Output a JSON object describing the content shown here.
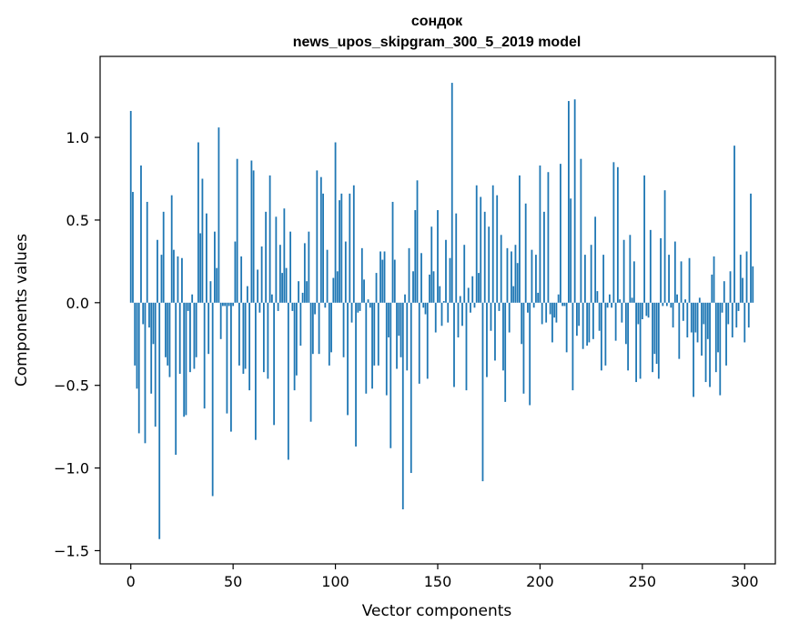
{
  "chart_data": {
    "type": "bar",
    "title_lines": [
      "сондок",
      "news_upos_skipgram_300_5_2019 model"
    ],
    "xlabel": "Vector components",
    "ylabel": "Components values",
    "xlim": [
      -15,
      315
    ],
    "ylim": [
      -1.58,
      1.49
    ],
    "xticks": [
      0,
      50,
      100,
      150,
      200,
      250,
      300
    ],
    "yticks": [
      -1.5,
      -1.0,
      -0.5,
      0.0,
      0.5,
      1.0
    ],
    "ytick_labels": [
      "−1.5",
      "−1.0",
      "−0.5",
      "0.0",
      "0.5",
      "1.0"
    ],
    "bar_color": "#1f77b4",
    "values": [
      1.16,
      0.67,
      -0.38,
      -0.52,
      -0.79,
      0.83,
      -0.13,
      -0.85,
      0.61,
      -0.15,
      -0.55,
      -0.25,
      -0.75,
      0.38,
      -1.43,
      0.29,
      0.55,
      -0.33,
      -0.38,
      -0.45,
      0.65,
      0.32,
      -0.92,
      0.28,
      -0.43,
      0.27,
      -0.69,
      -0.68,
      -0.05,
      -0.42,
      0.05,
      -0.4,
      -0.33,
      0.97,
      0.42,
      0.75,
      -0.64,
      0.54,
      -0.31,
      0.13,
      -1.17,
      0.43,
      0.21,
      1.06,
      -0.22,
      -0.02,
      -0.02,
      -0.67,
      -0.02,
      -0.78,
      -0.02,
      0.37,
      0.87,
      -0.38,
      0.28,
      -0.43,
      -0.4,
      0.1,
      -0.53,
      0.86,
      0.8,
      -0.83,
      0.2,
      -0.06,
      0.34,
      -0.42,
      0.55,
      -0.46,
      0.77,
      0.05,
      -0.74,
      0.52,
      -0.05,
      0.35,
      0.18,
      0.57,
      0.21,
      -0.95,
      0.43,
      -0.05,
      -0.53,
      -0.44,
      0.13,
      -0.26,
      0.06,
      0.36,
      0.13,
      0.43,
      -0.72,
      -0.31,
      -0.07,
      0.8,
      -0.31,
      0.76,
      0.66,
      -0.03,
      0.32,
      -0.38,
      -0.3,
      0.15,
      0.97,
      0.19,
      0.62,
      0.66,
      -0.33,
      0.37,
      -0.68,
      0.66,
      -0.12,
      0.71,
      -0.87,
      -0.06,
      -0.05,
      0.33,
      0.14,
      -0.55,
      0.02,
      -0.03,
      -0.52,
      -0.38,
      0.18,
      -0.38,
      0.31,
      0.26,
      0.31,
      -0.56,
      -0.21,
      -0.88,
      0.61,
      0.26,
      -0.4,
      -0.2,
      -0.33,
      -1.25,
      0.05,
      -0.41,
      0.33,
      -1.03,
      0.19,
      0.56,
      0.74,
      -0.49,
      0.3,
      -0.03,
      -0.07,
      -0.46,
      0.17,
      0.46,
      0.19,
      -0.18,
      0.56,
      0.1,
      -0.14,
      0.01,
      0.38,
      -0.12,
      0.27,
      1.33,
      -0.51,
      0.54,
      -0.21,
      0.04,
      -0.14,
      0.35,
      -0.53,
      0.09,
      -0.06,
      0.16,
      -0.03,
      0.71,
      0.18,
      0.64,
      -1.08,
      0.55,
      -0.45,
      0.46,
      -0.17,
      0.71,
      -0.35,
      0.65,
      -0.05,
      0.41,
      -0.41,
      -0.6,
      0.33,
      -0.18,
      0.31,
      0.1,
      0.35,
      0.24,
      0.77,
      -0.25,
      -0.55,
      0.6,
      -0.06,
      -0.62,
      0.32,
      -0.03,
      0.29,
      0.06,
      0.83,
      -0.13,
      0.55,
      -0.12,
      0.79,
      -0.07,
      -0.24,
      -0.09,
      -0.12,
      0.05,
      0.84,
      -0.02,
      -0.02,
      -0.3,
      1.22,
      0.63,
      -0.53,
      1.23,
      -0.2,
      -0.14,
      0.87,
      -0.28,
      0.29,
      -0.26,
      -0.24,
      0.35,
      -0.22,
      0.52,
      0.07,
      -0.17,
      -0.41,
      0.29,
      -0.38,
      -0.03,
      0.05,
      -0.03,
      0.85,
      -0.23,
      0.82,
      0.02,
      -0.12,
      0.38,
      -0.25,
      -0.41,
      0.41,
      0.03,
      0.25,
      -0.48,
      -0.13,
      -0.46,
      -0.1,
      0.77,
      -0.08,
      -0.09,
      0.44,
      -0.42,
      -0.31,
      -0.37,
      -0.46,
      0.39,
      -0.02,
      0.68,
      -0.02,
      0.29,
      -0.03,
      -0.15,
      0.37,
      0.05,
      -0.34,
      0.25,
      -0.11,
      0.02,
      -0.21,
      0.27,
      -0.18,
      -0.57,
      -0.18,
      -0.24,
      0.03,
      -0.32,
      -0.13,
      -0.48,
      -0.22,
      -0.51,
      0.17,
      0.28,
      -0.42,
      -0.3,
      -0.56,
      -0.06,
      0.13,
      -0.38,
      -0.13,
      0.19,
      -0.21,
      0.95,
      -0.15,
      -0.05,
      0.29,
      0.15,
      -0.24,
      0.31,
      -0.15,
      0.66,
      0.22
    ]
  }
}
